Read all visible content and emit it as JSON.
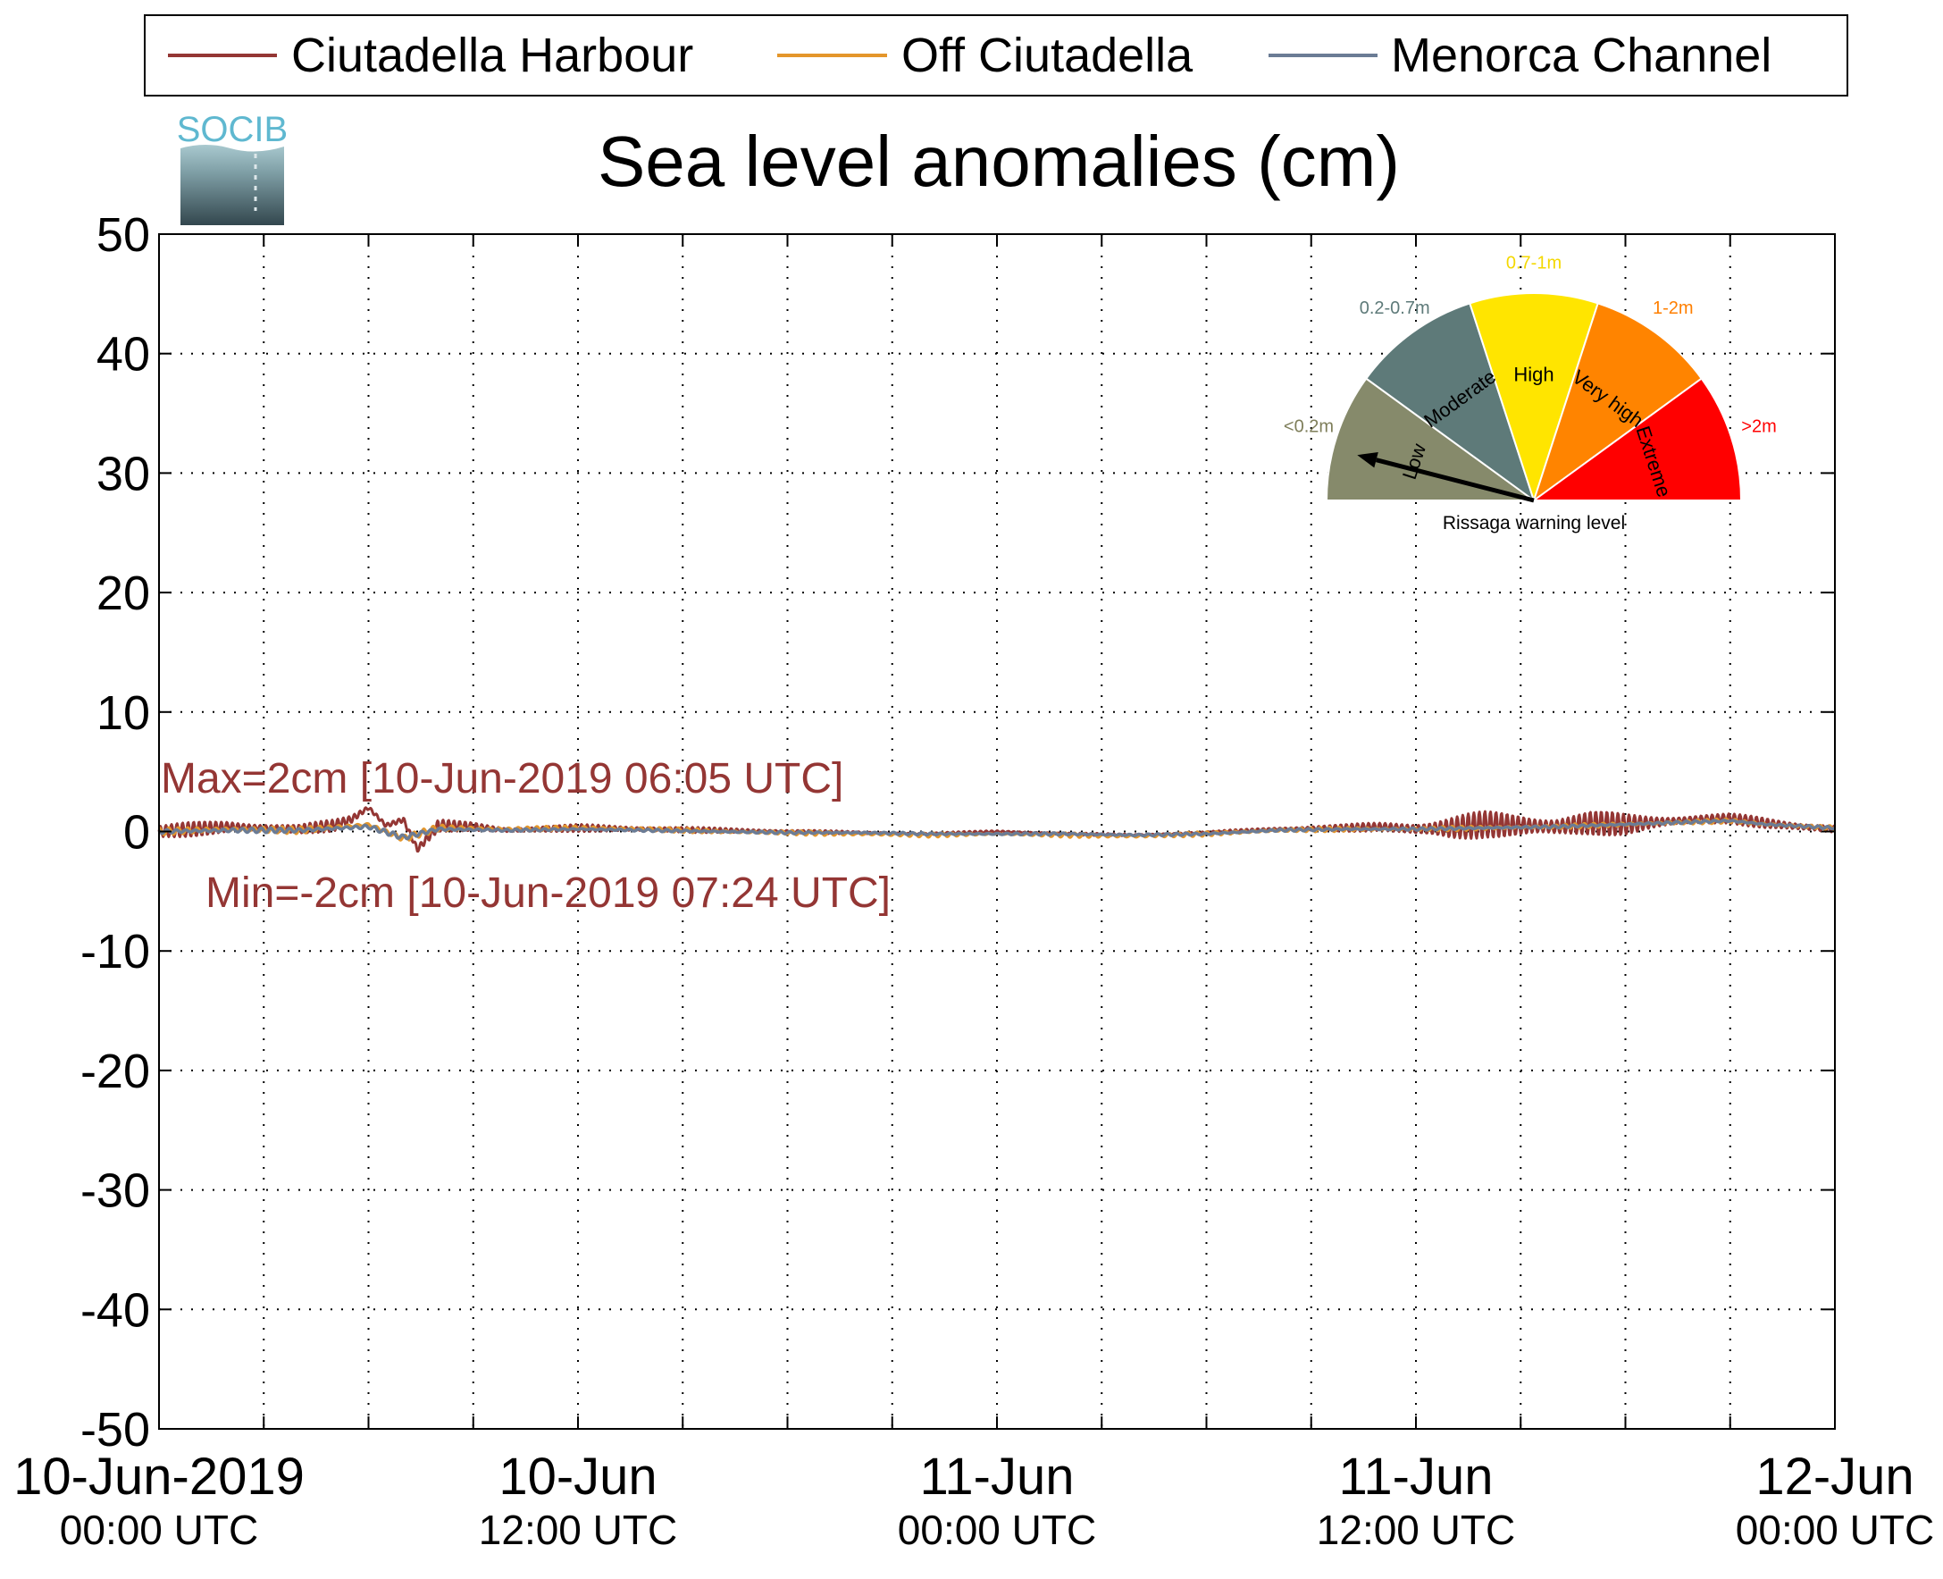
{
  "chart_data": {
    "type": "line",
    "title": "Sea level anomalies (cm)",
    "logo_text": "SOCIB",
    "ylim": [
      -50,
      50
    ],
    "yticks": [
      -50,
      -40,
      -30,
      -20,
      -10,
      0,
      10,
      20,
      30,
      40,
      50
    ],
    "xlim_hours": [
      0,
      48
    ],
    "xticks_hours": [
      0,
      3,
      6,
      9,
      12,
      15,
      18,
      21,
      24,
      27,
      30,
      33,
      36,
      39,
      42,
      45,
      48
    ],
    "xtick_labels": [
      {
        "hour": 0,
        "line1": "10-Jun-2019",
        "line2": "00:00 UTC"
      },
      {
        "hour": 12,
        "line1": "10-Jun",
        "line2": "12:00 UTC"
      },
      {
        "hour": 24,
        "line1": "11-Jun",
        "line2": "00:00 UTC"
      },
      {
        "hour": 36,
        "line1": "11-Jun",
        "line2": "12:00 UTC"
      },
      {
        "hour": 48,
        "line1": "12-Jun",
        "line2": "00:00 UTC"
      }
    ],
    "grid": true,
    "legend_position": "top",
    "series": [
      {
        "name": "Ciutadella Harbour",
        "color": "#943634",
        "x": [
          0,
          1,
          2,
          3,
          4,
          5,
          5.5,
          6,
          6.5,
          7,
          7.4,
          8,
          9,
          10,
          12,
          14,
          16,
          18,
          20,
          22,
          24,
          26,
          28,
          30,
          32,
          34,
          35,
          36,
          37,
          38,
          39,
          40,
          41,
          42,
          43,
          44,
          45,
          46,
          47,
          48
        ],
        "y": [
          0,
          0.2,
          0.4,
          0.3,
          0.2,
          0.5,
          1.0,
          2.0,
          0.5,
          1.0,
          -1.5,
          0.5,
          0.4,
          0.1,
          0.3,
          0.2,
          0.1,
          0,
          -0.1,
          -0.2,
          0,
          -0.2,
          -0.3,
          -0.1,
          0.2,
          0.3,
          0.4,
          0.2,
          0.3,
          0.6,
          0.5,
          0.4,
          0.7,
          0.6,
          0.8,
          1.0,
          1.1,
          0.7,
          0.4,
          0.2
        ],
        "osc_amp": [
          0.6,
          0.6,
          0.6,
          0.5,
          0.4,
          0.5,
          0.4,
          0.3,
          0.4,
          0.4,
          0.3,
          0.5,
          0.4,
          0.3,
          0.3,
          0.3,
          0.2,
          0.2,
          0.1,
          0.1,
          0.1,
          0.1,
          0.1,
          0.1,
          0.2,
          0.3,
          0.4,
          0.8,
          1.1,
          1.1,
          1.2,
          1.2,
          1.1,
          0.9,
          0.7,
          0.5,
          0.4,
          0.5,
          0.5,
          0.4
        ]
      },
      {
        "name": "Off Ciutadella",
        "color": "#E4962B",
        "x": [
          0,
          2,
          4,
          6,
          7,
          8,
          10,
          12,
          14,
          16,
          18,
          20,
          22,
          24,
          26,
          28,
          30,
          32,
          34,
          36,
          38,
          40,
          42,
          44,
          45,
          46,
          48
        ],
        "y": [
          0,
          0.2,
          0.1,
          0.6,
          -0.6,
          0.3,
          0.2,
          0.3,
          0.2,
          0,
          -0.1,
          -0.2,
          -0.3,
          -0.2,
          -0.3,
          -0.4,
          -0.2,
          0.1,
          0.2,
          0.2,
          0.3,
          0.4,
          0.6,
          0.8,
          0.9,
          0.6,
          0.3
        ],
        "osc_amp": [
          0.3,
          0.3,
          0.3,
          0.2,
          0.3,
          0.3,
          0.2,
          0.2,
          0.2,
          0.2,
          0.2,
          0.2,
          0.2,
          0.1,
          0.2,
          0.2,
          0.2,
          0.2,
          0.2,
          0.2,
          0.2,
          0.2,
          0.2,
          0.2,
          0.2,
          0.2,
          0.2
        ]
      },
      {
        "name": "Menorca Channel",
        "color": "#6B7C95",
        "x": [
          0,
          2,
          4,
          6,
          7,
          8,
          10,
          12,
          14,
          16,
          18,
          20,
          22,
          24,
          26,
          28,
          30,
          32,
          34,
          36,
          38,
          40,
          42,
          44,
          45,
          46,
          48
        ],
        "y": [
          0,
          0.1,
          0.1,
          0.4,
          -0.5,
          0.2,
          0.1,
          0.2,
          0.1,
          0,
          -0.1,
          -0.1,
          -0.2,
          -0.2,
          -0.2,
          -0.3,
          -0.2,
          0.1,
          0.2,
          0.2,
          0.3,
          0.4,
          0.6,
          0.8,
          0.9,
          0.6,
          0.3
        ],
        "osc_amp": [
          0.2,
          0.2,
          0.2,
          0.2,
          0.2,
          0.2,
          0.1,
          0.1,
          0.1,
          0.1,
          0.1,
          0.1,
          0.1,
          0.1,
          0.1,
          0.1,
          0.1,
          0.1,
          0.1,
          0.1,
          0.1,
          0.1,
          0.1,
          0.1,
          0.1,
          0.1,
          0.1
        ]
      }
    ],
    "annotations": {
      "max": "Max=2cm [10-Jun-2019 06:05 UTC]",
      "min": "Min=-2cm [10-Jun-2019 07:24 UTC]",
      "color": "#943634"
    },
    "gauge": {
      "title": "Rissaga warning level",
      "needle_level": "Low",
      "needle_fraction": 0.08,
      "segments": [
        {
          "name": "Low",
          "range": "<0.2m",
          "color": "#868A6B",
          "range_color": "#7E7E5A"
        },
        {
          "name": "Moderate",
          "range": "0.2-0.7m",
          "color": "#5E7A79",
          "range_color": "#5E7A79"
        },
        {
          "name": "High",
          "range": "0.7-1m",
          "color": "#FFE500",
          "range_color": "#F4D800"
        },
        {
          "name": "Very high",
          "range": "1-2m",
          "color": "#FF8400",
          "range_color": "#FF7F00"
        },
        {
          "name": "Extreme",
          "range": ">2m",
          "color": "#FF0000",
          "range_color": "#FF0000"
        }
      ]
    }
  }
}
